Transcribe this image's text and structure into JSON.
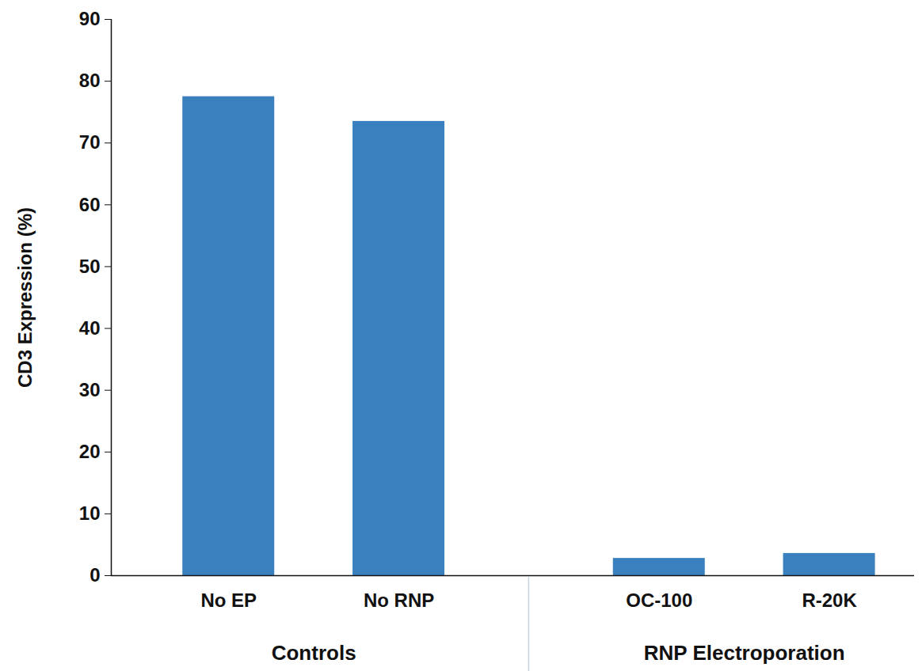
{
  "chart_data": {
    "type": "bar",
    "y_label": "CD3 Expression (%)",
    "categories": [
      "No EP",
      "No RNP",
      "OC-100",
      "R-20K"
    ],
    "groups": [
      "Controls",
      "Controls",
      "RNP Electroporation",
      "RNP Electroporation"
    ],
    "values": [
      77.5,
      73.5,
      2.8,
      3.6
    ],
    "color": "#3b80be",
    "ylim": [
      0,
      90
    ],
    "yticks": [
      0,
      10,
      20,
      30,
      40,
      50,
      60,
      70,
      80,
      90
    ],
    "grid": false
  }
}
